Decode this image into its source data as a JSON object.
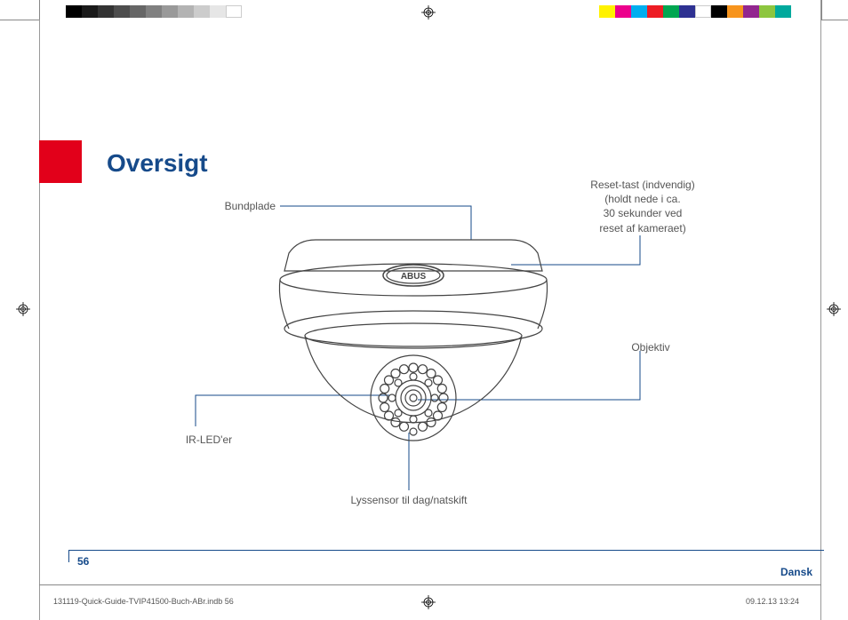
{
  "title": "Oversigt",
  "labels": {
    "bundplade": "Bundplade",
    "reset": "Reset-tast (indvendig)\n(holdt nede i ca.\n30 sekunder ved\nreset af kameraet)",
    "objektiv": "Objektiv",
    "irled": "IR-LED'er",
    "lyssensor": "Lyssensor til dag/natskift"
  },
  "brand": "ABUS",
  "page_number": "56",
  "language": "Dansk",
  "footer_left": "131119-Quick-Guide-TVIP41500-Buch-ABr.indb   56",
  "footer_right": "09.12.13   13:24",
  "colors": {
    "accent_blue": "#164a8a",
    "accent_red": "#e2001a",
    "line_gray": "#444444",
    "text_gray": "#555555"
  },
  "gray_swatches": [
    "#000000",
    "#1a1a1a",
    "#333333",
    "#4d4d4d",
    "#666666",
    "#808080",
    "#999999",
    "#b3b3b3",
    "#cccccc",
    "#e6e6e6",
    "#ffffff"
  ],
  "color_swatches": [
    "#fff200",
    "#ec008c",
    "#00aeef",
    "#ed1c24",
    "#00a651",
    "#2e3192",
    "#ffffff",
    "#000000",
    "#f7941d",
    "#92278f",
    "#8dc63f",
    "#00a99d"
  ]
}
